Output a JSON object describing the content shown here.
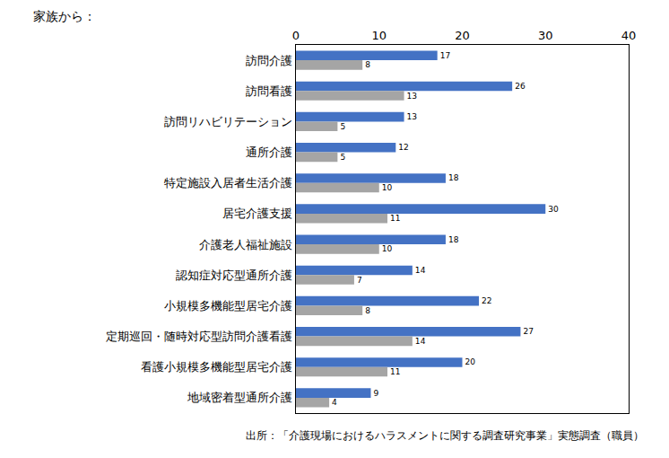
{
  "chart_data": {
    "type": "bar",
    "title": "家族から：",
    "orientation": "horizontal",
    "categories": [
      "訪問介護",
      "訪問看護",
      "訪問リハビリテーション",
      "通所介護",
      "特定施設入居者生活介護",
      "居宅介護支援",
      "介護老人福祉施設",
      "認知症対応型通所介護",
      "小規模多機能型居宅介護",
      "定期巡回・随時対応型訪問介護看護",
      "看護小規模多機能型居宅介護",
      "地域密着型通所介護"
    ],
    "series": [
      {
        "color": "#4472c4",
        "values": [
          17,
          26,
          13,
          12,
          18,
          30,
          18,
          14,
          22,
          27,
          20,
          9
        ]
      },
      {
        "color": "#a5a5a5",
        "values": [
          8,
          13,
          5,
          5,
          10,
          11,
          10,
          7,
          8,
          14,
          11,
          4
        ]
      }
    ],
    "xlim": [
      0,
      40
    ],
    "xticks": [
      0,
      10,
      20,
      30,
      40
    ],
    "grid": false,
    "data_labels": true,
    "annotations": [
      "出所：「介護現場におけるハラスメントに関する調査研究事業」実態調査（職員）"
    ]
  }
}
